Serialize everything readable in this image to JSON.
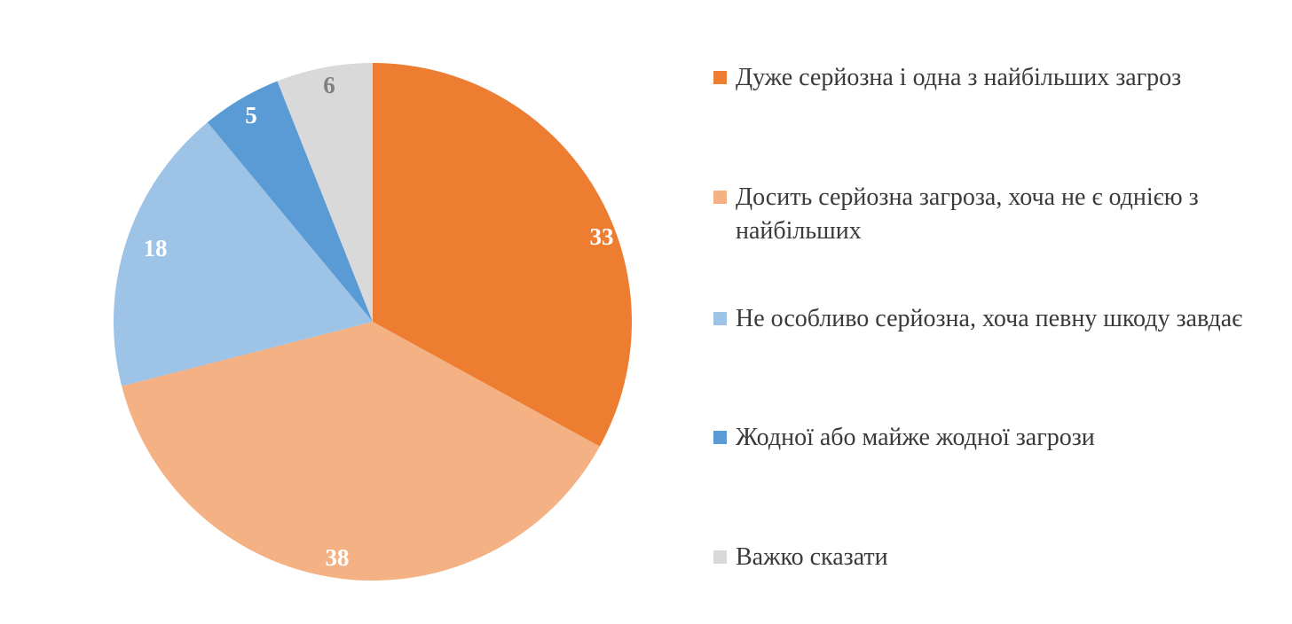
{
  "chart_data": {
    "type": "pie",
    "title": "",
    "values": [
      33,
      38,
      18,
      5,
      6
    ],
    "categories": [
      "Дуже серйозна і одна з найбільших загроз",
      "Досить серйозна загроза, хоча не є однією з найбільших",
      "Не особливо серйозна, хоча певну шкоду завдає",
      "Жодної або майже жодної загрози",
      "Важко сказати"
    ],
    "colors": [
      "#ed7d31",
      "#f4b183",
      "#9dc3e6",
      "#5b9bd5",
      "#d9d9d9"
    ],
    "label_colors": [
      "#ffffff",
      "#ffffff",
      "#ffffff",
      "#ffffff",
      "#7f7f7f"
    ],
    "legend_position": "right",
    "start_angle": "12 o'clock",
    "direction": "clockwise"
  },
  "legend": {
    "items": [
      {
        "label": "Дуже серйозна і одна з найбільших загроз",
        "color": "#ed7d31"
      },
      {
        "label": "Досить серйозна загроза, хоча не є однією з найбільших",
        "color": "#f4b183"
      },
      {
        "label": "Не особливо серйозна, хоча певну шкоду завдає",
        "color": "#9dc3e6"
      },
      {
        "label": "Жодної або майже жодної загрози",
        "color": "#5b9bd5"
      },
      {
        "label": "Важко сказати",
        "color": "#d9d9d9"
      }
    ]
  }
}
